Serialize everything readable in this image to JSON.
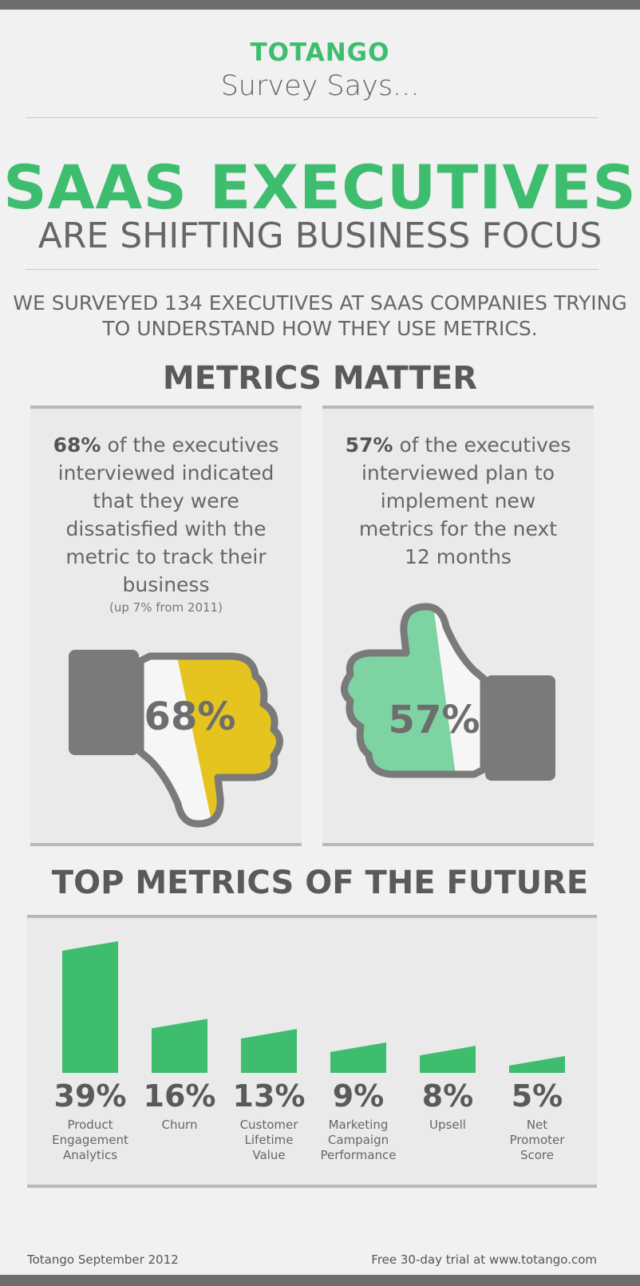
{
  "header": {
    "brand": "TOTANGO",
    "tagline": "Survey Says...",
    "headline": "SAAS EXECUTIVES",
    "subheadline": "ARE SHIFTING BUSINESS FOCUS",
    "intro_line1": "WE SURVEYED 134 EXECUTIVES AT SAAS COMPANIES TRYING",
    "intro_line2": "TO UNDERSTAND HOW THEY USE METRICS."
  },
  "metrics_matter": {
    "title": "METRICS MATTER",
    "left": {
      "percent": "68%",
      "lines": [
        "of the executives",
        "interviewed indicated",
        "that they were",
        "dissatisfied with the",
        "metric to track their",
        "business"
      ],
      "note": "(up 7% from 2011)",
      "icon_label": "68%",
      "fill_value": 68,
      "color": "#e5c420"
    },
    "right": {
      "percent": "57%",
      "lines": [
        "of the executives",
        "interviewed plan to",
        "implement new",
        "metrics for the next",
        "12 months"
      ],
      "icon_label": "57%",
      "fill_value": 57,
      "color": "#7ed3a2"
    }
  },
  "chart_data": {
    "type": "bar",
    "title": "TOP METRICS OF THE FUTURE",
    "categories": [
      "Product Engagement Analytics",
      "Churn",
      "Customer Lifetime Value",
      "Marketing Campaign Performance",
      "Upsell",
      "Net Promoter Score"
    ],
    "category_lines": [
      [
        "Product",
        "Engagement",
        "Analytics"
      ],
      [
        "Churn"
      ],
      [
        "Customer",
        "Lifetime",
        "Value"
      ],
      [
        "Marketing",
        "Campaign",
        "Performance"
      ],
      [
        "Upsell"
      ],
      [
        "Net",
        "Promoter",
        "Score"
      ]
    ],
    "values": [
      39,
      16,
      13,
      9,
      8,
      5
    ],
    "value_labels": [
      "39%",
      "16%",
      "13%",
      "9%",
      "8%",
      "5%"
    ],
    "bar_color": "#3ebd6f"
  },
  "footer": {
    "left": "Totango September 2012",
    "right": "Free 30-day trial at www.totango.com"
  },
  "colors": {
    "accent": "#3ebd6f",
    "gray": "#6d6d6d",
    "yellow": "#e5c420"
  },
  "icons": {
    "left": "thumbs-down-icon",
    "right": "thumbs-up-icon"
  }
}
